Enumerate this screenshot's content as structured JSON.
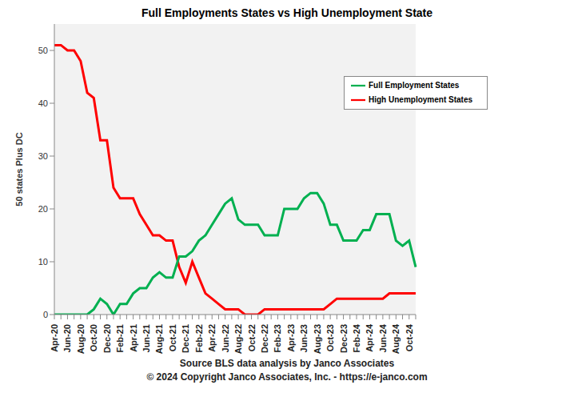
{
  "chart_data": {
    "type": "line",
    "title": "Full Employments States vs High Unemployment State",
    "y_label": "50 states Plus DC",
    "annotations": [
      "Source BLS data analysis  by Janco  Associates",
      "© 2024 Copyright Janco Associates, Inc. - https://e-janco.com"
    ],
    "categories": [
      "Apr-20",
      null,
      "Jun-20",
      null,
      "Aug-20",
      null,
      "Oct-20",
      null,
      "Dec-20",
      null,
      "Feb-21",
      null,
      "Apr-21",
      null,
      "Jun-21",
      null,
      "Aug-21",
      null,
      "Oct-21",
      null,
      "Dec-21",
      null,
      "Feb-22",
      null,
      "Apr-22",
      null,
      "Jun-22",
      null,
      "Aug-22",
      null,
      "Oct-22",
      null,
      "Dec-22",
      null,
      "Feb-23",
      null,
      "Apr-23",
      null,
      "Jun-23",
      null,
      "Aug-23",
      null,
      "Oct-23",
      null,
      "Dec-23",
      null,
      "Feb-24",
      null,
      "Apr-24",
      null,
      "Jun-24",
      null,
      "Aug-24",
      null,
      "Oct-24",
      null
    ],
    "series": [
      {
        "name": "High Unemployment States",
        "color": "#ff0000",
        "values": [
          51,
          51,
          50,
          50,
          48,
          42,
          41,
          33,
          33,
          24,
          22,
          22,
          22,
          19,
          17,
          15,
          15,
          14,
          14,
          9,
          6,
          10,
          7,
          4,
          3,
          2,
          1,
          1,
          1,
          0,
          0,
          0,
          1,
          1,
          1,
          1,
          1,
          1,
          1,
          1,
          1,
          1,
          2,
          3,
          3,
          3,
          3,
          3,
          3,
          3,
          3,
          4,
          4,
          4,
          4,
          4
        ]
      },
      {
        "name": "Full Employment States",
        "color": "#00b050",
        "values": [
          0,
          0,
          0,
          0,
          0,
          0,
          1,
          3,
          2,
          0,
          2,
          2,
          4,
          5,
          5,
          7,
          8,
          7,
          7,
          11,
          11,
          12,
          14,
          15,
          17,
          19,
          21,
          22,
          18,
          17,
          17,
          17,
          15,
          15,
          15,
          20,
          20,
          20,
          22,
          23,
          23,
          21,
          17,
          17,
          14,
          14,
          14,
          16,
          16,
          19,
          19,
          19,
          14,
          13,
          14,
          9
        ]
      }
    ],
    "ylim": [
      0,
      55
    ],
    "yticks": [
      0,
      10,
      20,
      30,
      40,
      50
    ],
    "grid": false,
    "legend": "upper right"
  }
}
